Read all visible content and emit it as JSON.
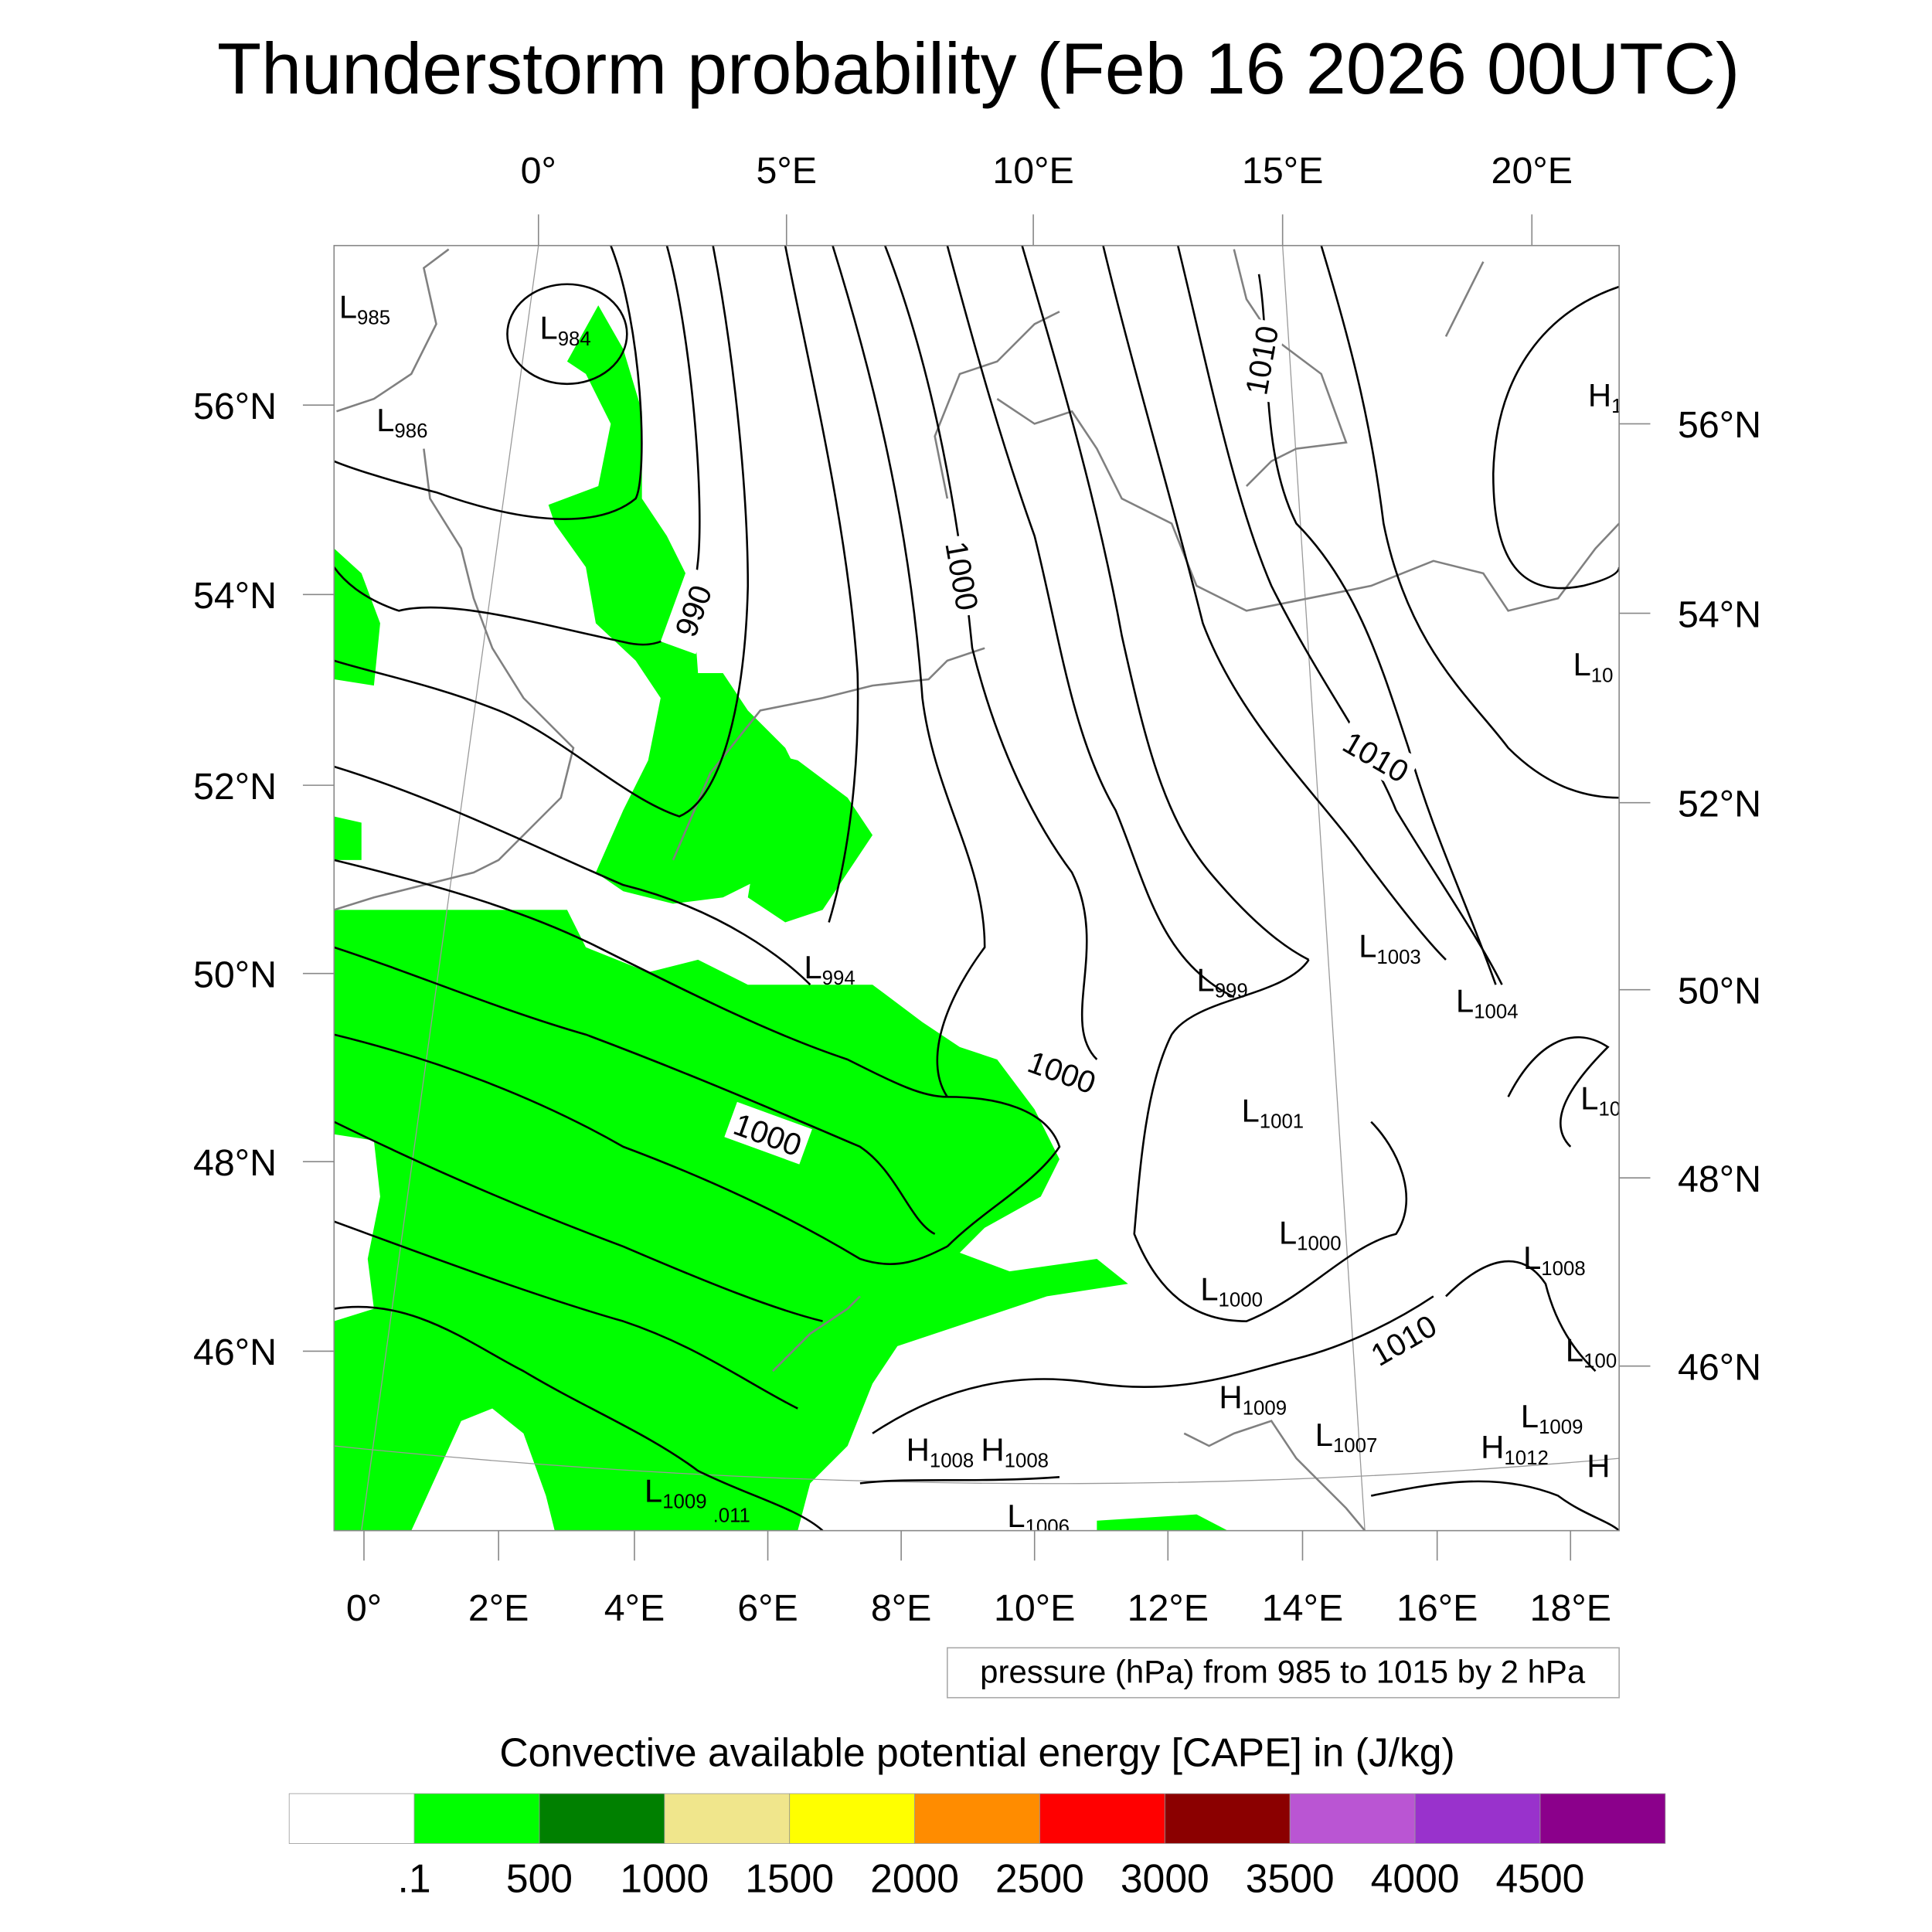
{
  "title": "Thunderstorm probability (Feb 16 2026 00UTC)",
  "axes": {
    "top_lon_labels": [
      "0°",
      "5°E",
      "10°E",
      "15°E",
      "20°E"
    ],
    "bottom_lon_labels": [
      "0°",
      "2°E",
      "4°E",
      "6°E",
      "8°E",
      "10°E",
      "12°E",
      "14°E",
      "16°E",
      "18°E"
    ],
    "left_lat_labels": [
      "56°N",
      "54°N",
      "52°N",
      "50°N",
      "48°N",
      "46°N"
    ],
    "right_lat_labels": [
      "56°N",
      "54°N",
      "52°N",
      "50°N",
      "48°N",
      "46°N"
    ]
  },
  "contour_labels": [
    "990",
    "1000",
    "1000",
    "1000",
    "1010",
    "1010",
    "1010"
  ],
  "pressure_centers": [
    {
      "letter": "L",
      "value": "985"
    },
    {
      "letter": "L",
      "value": "984"
    },
    {
      "letter": "L",
      "value": "986"
    },
    {
      "letter": "L",
      "value": "994"
    },
    {
      "letter": "L",
      "value": "1003"
    },
    {
      "letter": "L",
      "value": "999"
    },
    {
      "letter": "L",
      "value": "1004"
    },
    {
      "letter": "L",
      "value": "1001"
    },
    {
      "letter": "L",
      "value": "1000"
    },
    {
      "letter": "L",
      "value": "1000"
    },
    {
      "letter": "L",
      "value": "1008"
    },
    {
      "letter": "H",
      "value": "1009"
    },
    {
      "letter": "L",
      "value": "1007"
    },
    {
      "letter": "L",
      "value": "1009"
    },
    {
      "letter": "H",
      "value": "1012"
    },
    {
      "letter": "H",
      "value": "1008"
    },
    {
      "letter": "H",
      "value": "1008"
    },
    {
      "letter": "L",
      "value": "1009"
    },
    {
      "letter": "",
      "value": ".011"
    },
    {
      "letter": "L",
      "value": "1006"
    },
    {
      "letter": "H",
      "value": "1"
    },
    {
      "letter": "L",
      "value": "10"
    },
    {
      "letter": "L",
      "value": "10"
    },
    {
      "letter": "L",
      "value": "100"
    },
    {
      "letter": "H",
      "value": ""
    }
  ],
  "contour_info": "pressure (hPa) from 985 to 1015 by 2 hPa",
  "colorbar": {
    "title": "Convective available potential energy [CAPE] in (J/kg)",
    "colors": [
      "#ffffff",
      "#00ff00",
      "#008000",
      "#f0e68c",
      "#ffff00",
      "#ff8c00",
      "#ff0000",
      "#8b0000",
      "#ba55d3",
      "#9932cc",
      "#8b008b"
    ],
    "labels": [
      ".1",
      "500",
      "1000",
      "1500",
      "2000",
      "2500",
      "3000",
      "3500",
      "4000",
      "4500"
    ]
  }
}
